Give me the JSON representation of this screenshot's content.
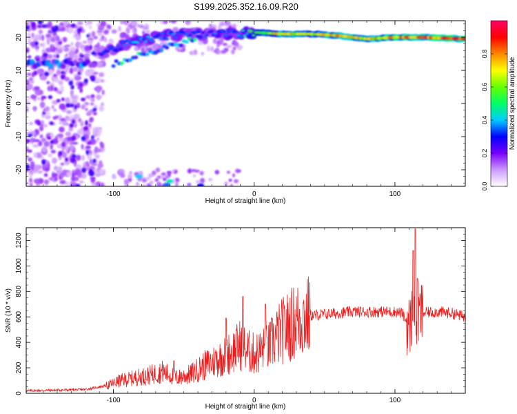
{
  "title": "S199.2025.352.16.09.R20",
  "chart_data": [
    {
      "type": "heatmap",
      "title": "S199.2025.352.16.09.R20",
      "xlabel": "Height of straight line (km)",
      "ylabel": "Frequency (Hz)",
      "xlim": [
        -162,
        150
      ],
      "ylim": [
        -25,
        25
      ],
      "xticks": [
        -100,
        0,
        100
      ],
      "yticks": [
        20,
        10,
        0,
        -10,
        -20
      ],
      "colorbar": {
        "label": "Normalized spectral amplitude",
        "range": [
          0,
          1
        ],
        "ticks": [
          "0.0",
          "0.2",
          "0.4",
          "0.6",
          "0.8"
        ],
        "colors": [
          "#ffffff",
          "#cc99ff",
          "#7a00ff",
          "#0000ff",
          "#00ccff",
          "#00ff66",
          "#66ff00",
          "#ffff00",
          "#ff8800",
          "#ff0000",
          "#ff0066"
        ]
      },
      "ridge": {
        "description": "dominant spectral line",
        "x": [
          -110,
          -90,
          -70,
          -50,
          -30,
          -10,
          0,
          20,
          40,
          60,
          80,
          100,
          120,
          150
        ],
        "freq_hz": [
          15,
          18,
          20,
          21,
          21,
          21,
          21.5,
          21,
          21,
          20.5,
          19.5,
          20,
          20,
          19.5
        ],
        "amplitude": [
          0.3,
          0.4,
          0.4,
          0.35,
          0.35,
          0.4,
          0.6,
          0.8,
          0.7,
          0.85,
          0.75,
          0.85,
          0.9,
          0.9
        ]
      }
    },
    {
      "type": "line",
      "xlabel": "Height of straight line (km)",
      "ylabel": "SNR (10 * v/v)",
      "xlim": [
        -162,
        150
      ],
      "ylim": [
        0,
        1300
      ],
      "xticks": [
        -100,
        0,
        100
      ],
      "yticks": [
        0,
        200,
        400,
        600,
        800,
        1000,
        1200
      ],
      "series": [
        {
          "name": "SNR",
          "color": "#ee1c1c",
          "x": [
            -162,
            -140,
            -120,
            -105,
            -95,
            -85,
            -75,
            -65,
            -55,
            -45,
            -35,
            -25,
            -15,
            -10,
            -5,
            0,
            5,
            10,
            15,
            20,
            30,
            40,
            50,
            60,
            70,
            80,
            90,
            100,
            105,
            110,
            113,
            115,
            118,
            120,
            130,
            140,
            150
          ],
          "y": [
            20,
            25,
            30,
            60,
            100,
            120,
            140,
            170,
            120,
            150,
            220,
            270,
            330,
            380,
            330,
            310,
            330,
            360,
            430,
            490,
            570,
            610,
            620,
            630,
            640,
            640,
            640,
            640,
            630,
            520,
            620,
            560,
            620,
            630,
            640,
            630,
            600
          ]
        }
      ],
      "peaks": [
        {
          "x": -57,
          "y": 255
        },
        {
          "x": -20,
          "y": 590
        },
        {
          "x": -8,
          "y": 760
        },
        {
          "x": 8,
          "y": 700
        },
        {
          "x": 113,
          "y": 1120
        },
        {
          "x": 114.5,
          "y": 1290
        },
        {
          "x": 116,
          "y": 900
        }
      ]
    }
  ]
}
